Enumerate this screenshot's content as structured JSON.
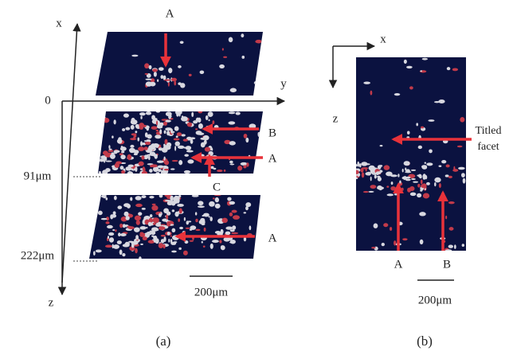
{
  "panel_a": {
    "axis_x": "x",
    "axis_y": "y",
    "axis_z": "z",
    "origin": "0",
    "depths": [
      "91μm",
      "222μm"
    ],
    "top_labels": [
      "A"
    ],
    "middle_labels": [
      "B",
      "A",
      "C"
    ],
    "bottom_labels": [
      "A"
    ],
    "scale": "200μm",
    "caption": "(a)"
  },
  "panel_b": {
    "axis_x": "x",
    "axis_z": "z",
    "facet_label": [
      "Titled",
      "facet"
    ],
    "labels": [
      "A",
      "B"
    ],
    "scale": "200μm",
    "caption": "(b)"
  }
}
